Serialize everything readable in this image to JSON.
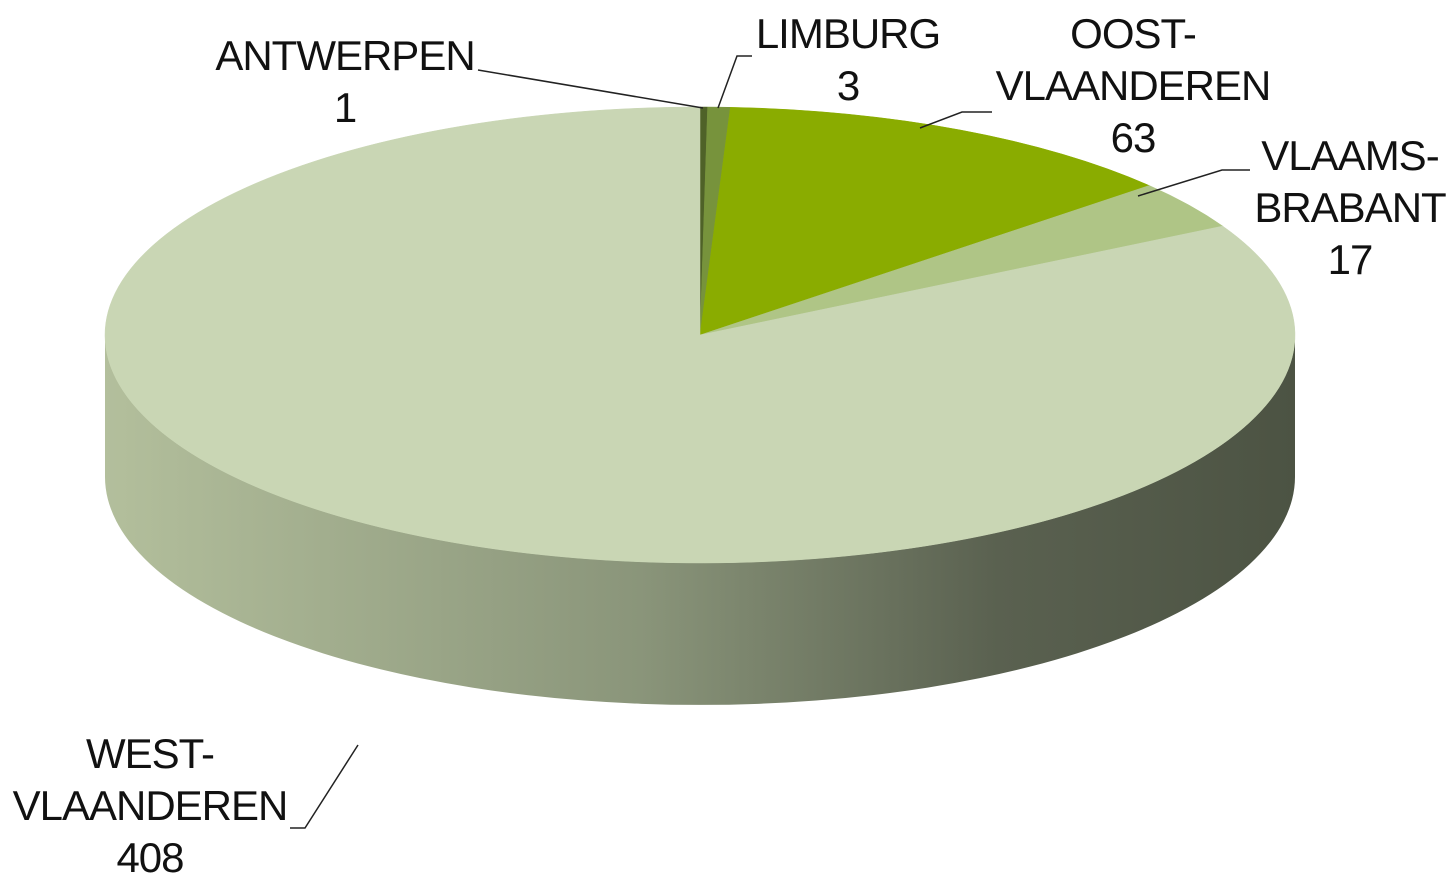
{
  "chart_data": {
    "type": "pie",
    "categories": [
      "ANTWERPEN",
      "LIMBURG",
      "OOST-VLAANDEREN",
      "VLAAMS-BRABANT",
      "WEST-VLAANDEREN"
    ],
    "values": [
      1,
      3,
      63,
      17,
      408
    ],
    "colors": [
      "#4f6228",
      "#77933c",
      "#8aac00",
      "#afc586",
      "#c9d6b4"
    ]
  }
}
